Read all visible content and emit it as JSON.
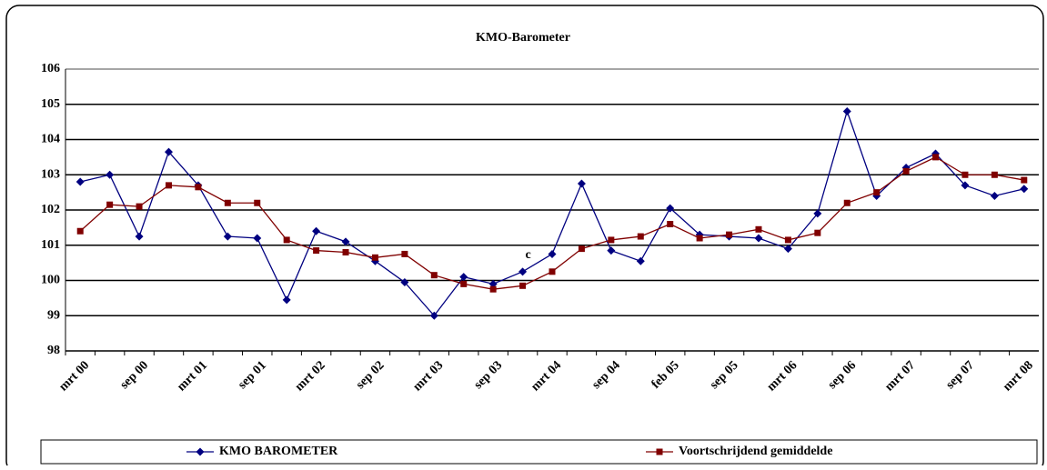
{
  "chart_data": {
    "type": "line",
    "title": "KMO-Barometer",
    "categories": [
      "mrt 00",
      null,
      "sep 00",
      null,
      "mrt 01",
      null,
      "sep 01",
      null,
      "mrt 02",
      null,
      "sep 02",
      null,
      "mrt 03",
      null,
      "sep 03",
      null,
      "mrt 04",
      null,
      "sep 04",
      null,
      "feb 05",
      null,
      "sep 05",
      null,
      "mrt 06",
      null,
      "sep 06",
      null,
      "mrt 07",
      null,
      "sep 07",
      null,
      "mrt 08"
    ],
    "series": [
      {
        "name": "KMO BAROMETER",
        "color": "#000080",
        "marker": "diamond",
        "values": [
          102.8,
          103.0,
          101.25,
          103.65,
          102.7,
          101.25,
          101.2,
          99.45,
          101.4,
          101.1,
          100.55,
          99.95,
          99.0,
          100.1,
          99.9,
          100.25,
          100.75,
          102.75,
          100.85,
          100.55,
          102.05,
          101.3,
          101.25,
          101.2,
          100.9,
          101.9,
          104.8,
          102.4,
          103.2,
          103.6,
          102.7,
          102.4,
          102.6
        ]
      },
      {
        "name": "Voortschrijdend gemiddelde",
        "color": "#800000",
        "marker": "square",
        "values": [
          101.4,
          102.15,
          102.1,
          102.7,
          102.65,
          102.2,
          102.2,
          101.15,
          100.85,
          100.8,
          100.65,
          100.75,
          100.15,
          99.9,
          99.75,
          99.85,
          100.25,
          100.9,
          101.15,
          101.25,
          101.6,
          101.2,
          101.3,
          101.45,
          101.15,
          101.35,
          102.2,
          102.5,
          103.1,
          103.5,
          103.0,
          103.0,
          102.85
        ]
      }
    ],
    "annotations": [
      {
        "text": "c",
        "index": 15,
        "value": 100.25
      }
    ],
    "ylim": [
      98,
      106
    ],
    "yticks": [
      98,
      99,
      100,
      101,
      102,
      103,
      104,
      105,
      106
    ],
    "grid": true,
    "legend": "bottom"
  }
}
